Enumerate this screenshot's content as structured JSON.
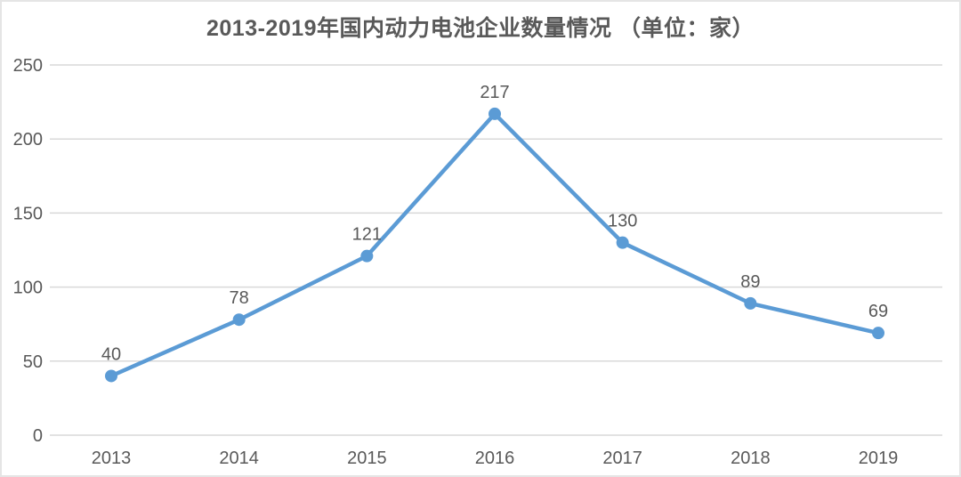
{
  "chart_data": {
    "type": "line",
    "title": "2013-2019年国内动力电池企业数量情况 （单位：家）",
    "categories": [
      "2013",
      "2014",
      "2015",
      "2016",
      "2017",
      "2018",
      "2019"
    ],
    "values": [
      40,
      78,
      121,
      217,
      130,
      89,
      69
    ],
    "data_labels_visible": true,
    "xlabel": "",
    "ylabel": "",
    "y_ticks": [
      0,
      50,
      100,
      150,
      200,
      250
    ],
    "ylim": [
      0,
      250
    ],
    "grid": "horizontal-only",
    "legend": "none",
    "marker": "circle",
    "colors": {
      "line": "#5B9BD5",
      "grid": "#D9D9D9",
      "axis_text": "#595959",
      "data_label": "#595959",
      "title_text": "#595959",
      "card_border": "#E5E5E5",
      "background": "#FFFFFF"
    }
  }
}
